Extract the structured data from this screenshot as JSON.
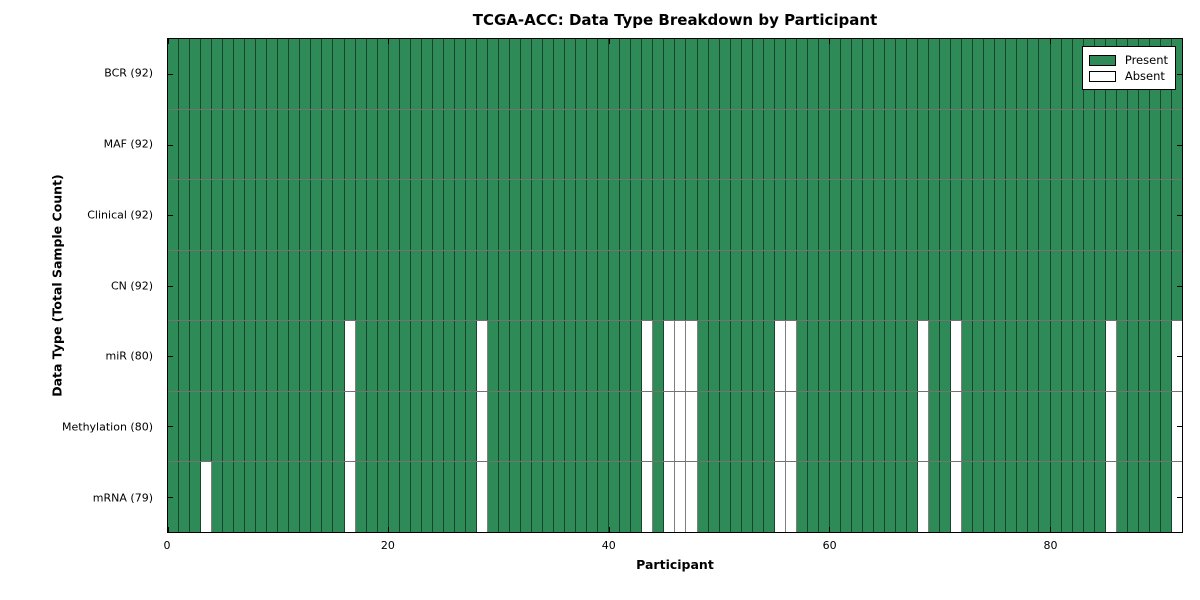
{
  "chart_data": {
    "type": "heatmap",
    "title": "TCGA-ACC: Data Type Breakdown by Participant",
    "xlabel": "Participant",
    "ylabel": "Data Type (Total Sample Count)",
    "n_participants": 92,
    "xlim": [
      0,
      92
    ],
    "x_ticks": [
      "0",
      "20",
      "40",
      "60",
      "80"
    ],
    "x_tick_values": [
      0,
      20,
      40,
      60,
      80
    ],
    "grid": false,
    "legend_position": "upper right",
    "legend": [
      {
        "label": "Present",
        "color": "#2e8b57"
      },
      {
        "label": "Absent",
        "color": "#ffffff"
      }
    ],
    "rows": [
      {
        "label": "BCR (92)",
        "total": 92,
        "absent_participants": []
      },
      {
        "label": "MAF (92)",
        "total": 92,
        "absent_participants": []
      },
      {
        "label": "Clinical (92)",
        "total": 92,
        "absent_participants": []
      },
      {
        "label": "CN (92)",
        "total": 92,
        "absent_participants": []
      },
      {
        "label": "miR (80)",
        "total": 80,
        "absent_participants": [
          16,
          28,
          43,
          45,
          46,
          47,
          55,
          56,
          68,
          71,
          85,
          91
        ]
      },
      {
        "label": "Methylation (80)",
        "total": 80,
        "absent_participants": [
          16,
          28,
          43,
          45,
          46,
          47,
          55,
          56,
          68,
          71,
          85,
          91
        ]
      },
      {
        "label": "mRNA (79)",
        "total": 79,
        "absent_participants": [
          3,
          16,
          28,
          43,
          45,
          46,
          47,
          55,
          56,
          68,
          71,
          85,
          91
        ]
      }
    ]
  }
}
